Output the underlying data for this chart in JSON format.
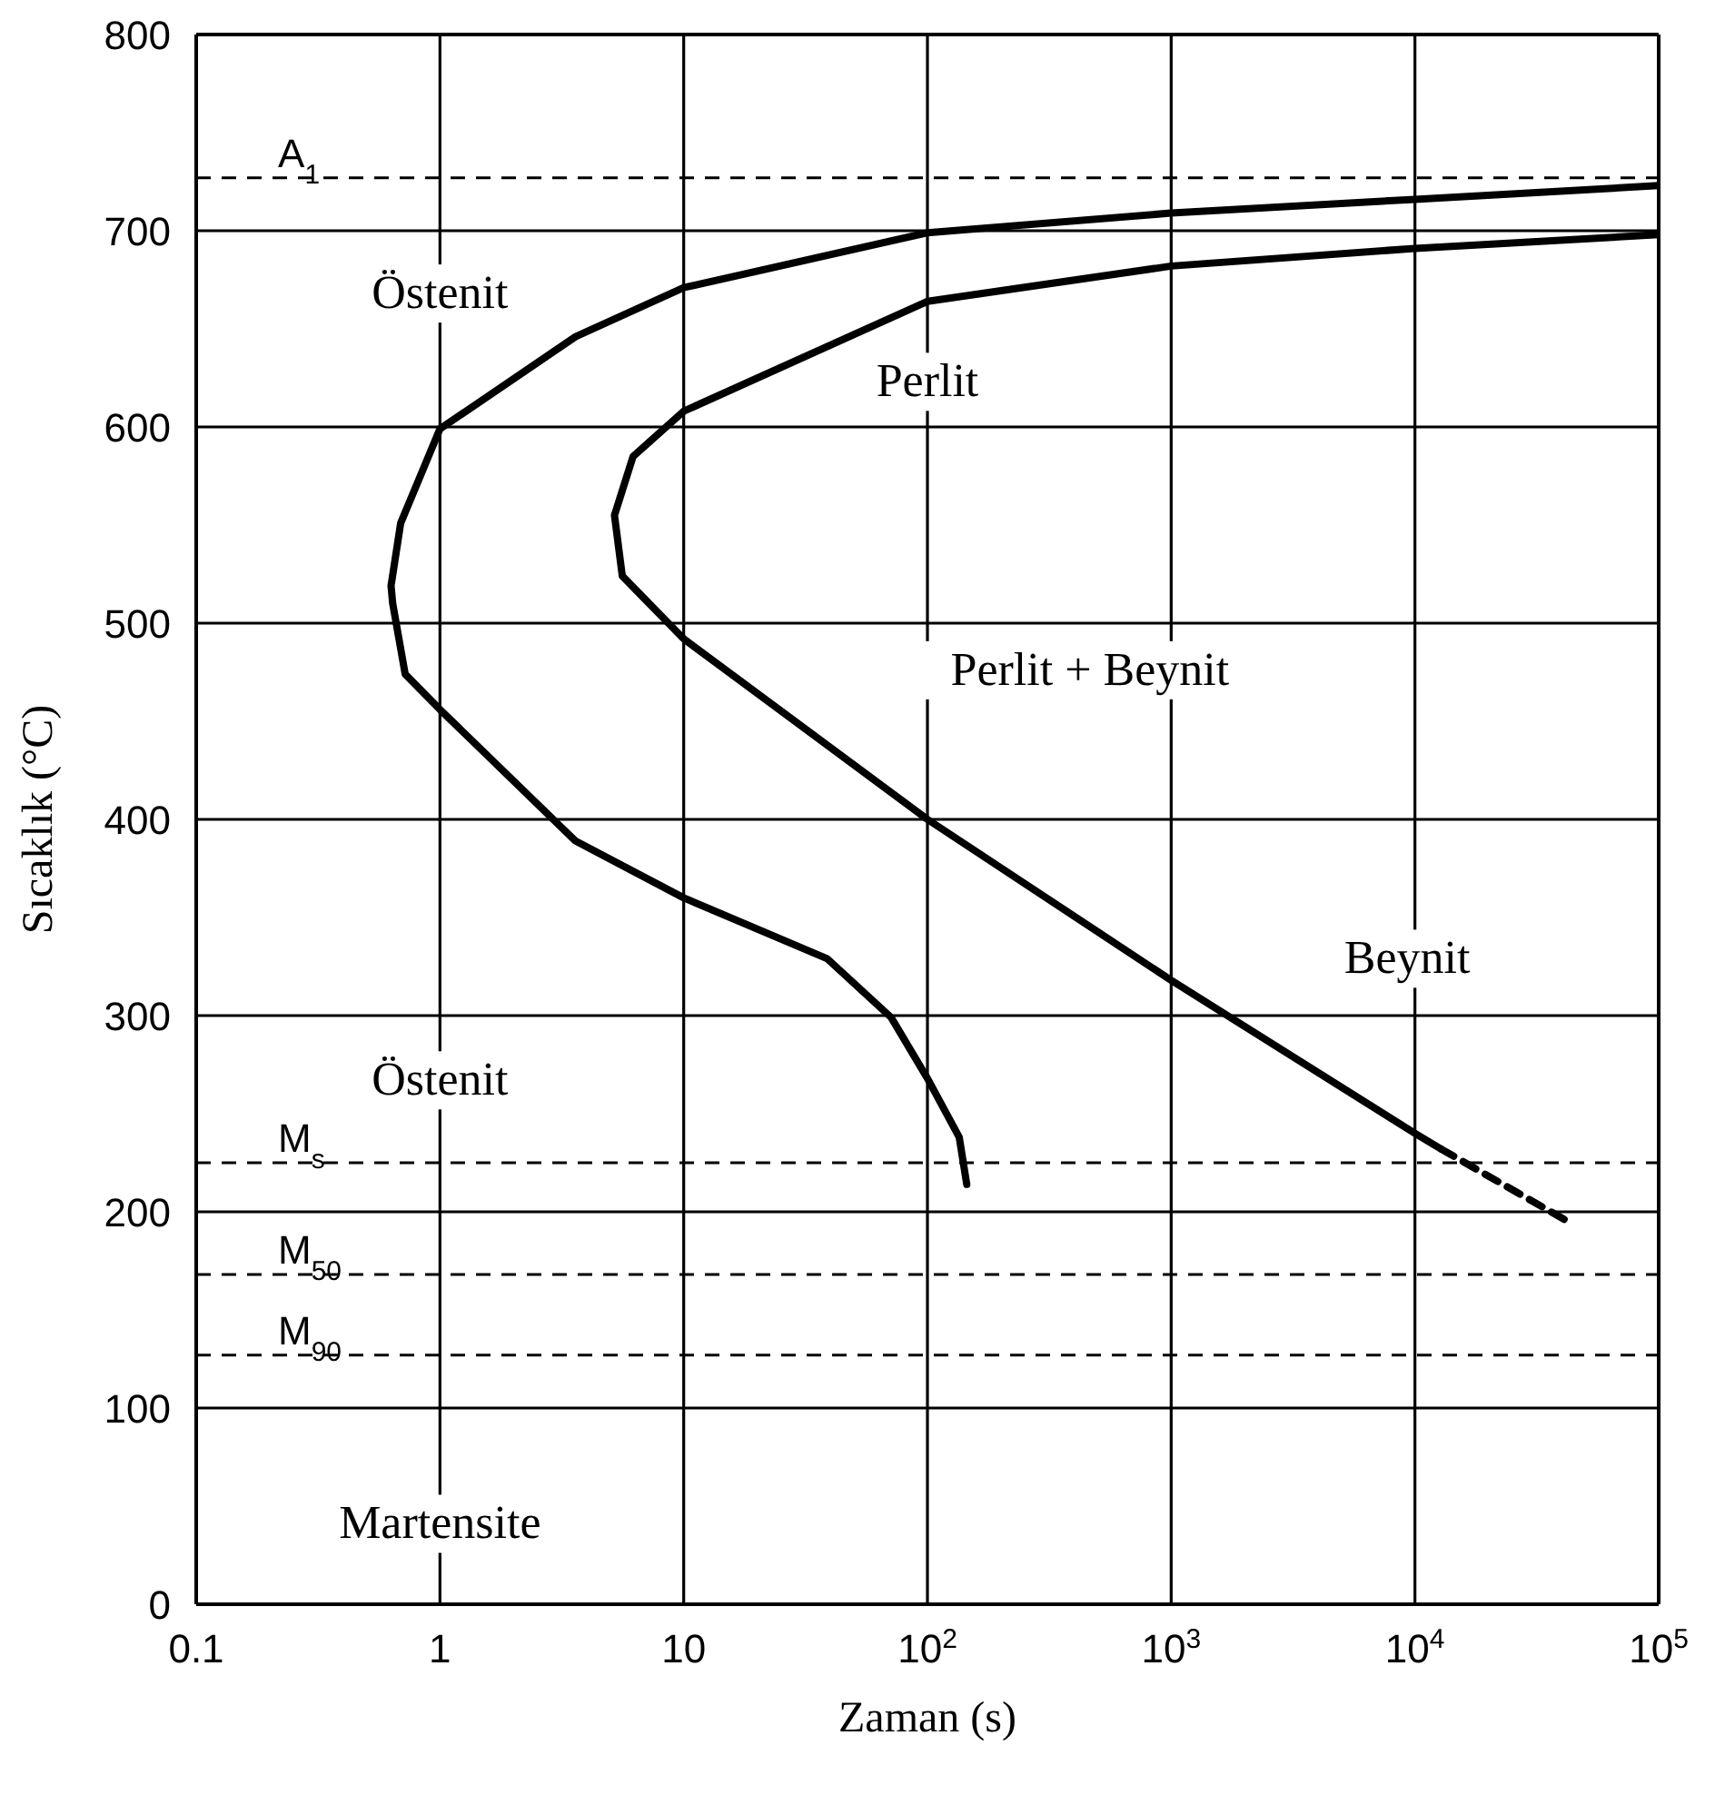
{
  "chart_data": {
    "type": "line",
    "xlabel": "Zaman (s)",
    "ylabel": "Sıcaklık (°C)",
    "log": "x",
    "xlim": [
      0.1,
      100000
    ],
    "xticks": [
      0.1,
      1,
      10,
      {
        "value": 100,
        "label": "10$^{2}$"
      },
      {
        "value": 1000,
        "label": "10$^{3}$"
      },
      {
        "value": 10000,
        "label": "10$^{4}$"
      },
      {
        "value": 100000,
        "label": "10$^{5}$"
      }
    ],
    "ylim": [
      0,
      800
    ],
    "yticks": [
      0,
      100,
      200,
      300,
      400,
      500,
      600,
      700,
      800
    ],
    "grid": true,
    "marker": "none",
    "series": [
      {
        "color": "#000000",
        "line_style": "solid",
        "x": [
          100000,
          10000,
          1000,
          100,
          10,
          3.6,
          1,
          0.69,
          0.63,
          0.64,
          0.72,
          1,
          3.6,
          10,
          38.8,
          71,
          100,
          135,
          145
        ],
        "values": [
          723,
          716,
          709,
          699,
          671,
          646,
          599,
          551,
          519,
          510,
          474,
          456,
          389,
          360,
          329,
          299,
          268,
          238,
          214
        ]
      },
      {
        "color": "#000000",
        "line_style": "solid",
        "x": [
          100000,
          10000,
          1000,
          100,
          10,
          6.2,
          5.2,
          5.6,
          10,
          100,
          1000,
          10000,
          12800
        ],
        "values": [
          698,
          691,
          682,
          664,
          608,
          585,
          555,
          524,
          492,
          400,
          318,
          240,
          232
        ]
      },
      {
        "color": "#000000",
        "line_style": "dashed",
        "x": [
          12800,
          42500
        ],
        "values": [
          232,
          195
        ]
      }
    ],
    "ref_lines": [
      {
        "axis": "y",
        "value": 727,
        "label": "A$_{1}$",
        "color": "#000000",
        "line_style": "dashed"
      },
      {
        "axis": "y",
        "value": 225,
        "label": "M$_{s}$",
        "color": "#000000",
        "line_style": "dashed"
      },
      {
        "axis": "y",
        "value": 168,
        "label": "M$_{50}$",
        "color": "#000000",
        "line_style": "dashed"
      },
      {
        "axis": "y",
        "value": 127,
        "label": "M$_{90}$",
        "color": "#000000",
        "line_style": "dashed"
      }
    ],
    "annotations": [
      "Östenit",
      "Perlit",
      "Perlit + Beynit",
      "Beynit",
      "Östenit",
      "Martensite"
    ]
  }
}
